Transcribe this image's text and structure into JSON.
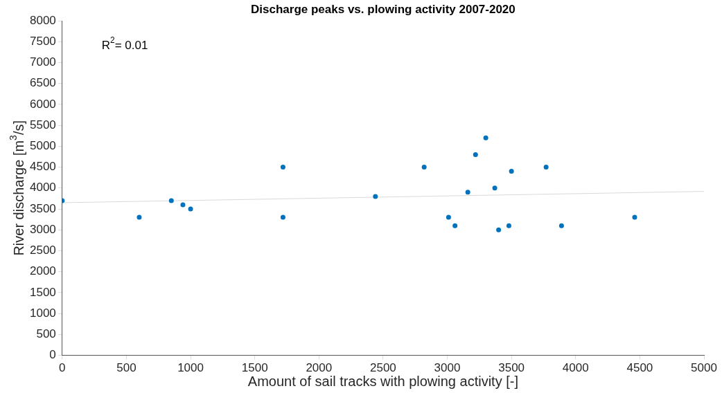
{
  "chart_data": {
    "type": "scatter",
    "title": "Discharge peaks vs. plowing activity 2007-2020",
    "xlabel": "Amount of sail tracks with plowing activity [-]",
    "ylabel": "River discharge [m$^{3}$/s]",
    "annotations": [
      "R$^{2}$= 0.01"
    ],
    "xlim": [
      0,
      5000
    ],
    "xticks": [
      0,
      500,
      1000,
      1500,
      2000,
      2500,
      3000,
      3500,
      4000,
      4500,
      5000
    ],
    "ylim": [
      0,
      8000
    ],
    "yticks": [
      0,
      500,
      1000,
      1500,
      2000,
      2500,
      3000,
      3500,
      4000,
      4500,
      5000,
      5500,
      6000,
      6500,
      7000,
      7500,
      8000
    ],
    "grid": false,
    "legend": false,
    "marker": "circle",
    "series": [
      {
        "color": "#0072bd",
        "x": [
          0,
          600,
          850,
          940,
          1000,
          1720,
          1720,
          2440,
          2820,
          3010,
          3060,
          3160,
          3220,
          3300,
          3370,
          3400,
          3480,
          3500,
          3770,
          3890,
          4460
        ],
        "values": [
          3700,
          3300,
          3700,
          3600,
          3500,
          4500,
          3300,
          3800,
          4500,
          3300,
          3100,
          3900,
          4800,
          5200,
          4000,
          3000,
          3100,
          4400,
          4500,
          3100,
          3300
        ]
      },
      {
        "type": "line",
        "color": "#d9d9d9",
        "marker": "none",
        "x": [
          0,
          5000
        ],
        "values": [
          3650,
          3920
        ]
      }
    ]
  }
}
